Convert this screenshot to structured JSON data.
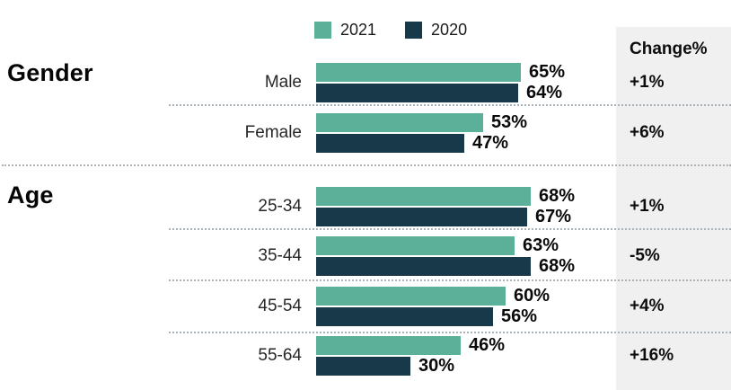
{
  "chart_data": {
    "type": "bar",
    "orientation": "horizontal",
    "value_unit": "%",
    "xlim": [
      0,
      100
    ],
    "grid": false,
    "legend": {
      "position": "top",
      "entries": [
        {
          "label": "2021",
          "color": "#5bb09a"
        },
        {
          "label": "2020",
          "color": "#17394a"
        }
      ]
    },
    "change_column": {
      "header": "Change%"
    },
    "sections": [
      {
        "title": "Gender",
        "rows": [
          {
            "label": "Male",
            "values": [
              65,
              64
            ],
            "display": [
              "65%",
              "64%"
            ],
            "change": "+1%"
          },
          {
            "label": "Female",
            "values": [
              53,
              47
            ],
            "display": [
              "53%",
              "47%"
            ],
            "change": "+6%"
          }
        ]
      },
      {
        "title": "Age",
        "rows": [
          {
            "label": "25-34",
            "values": [
              68,
              67
            ],
            "display": [
              "68%",
              "67%"
            ],
            "change": "+1%"
          },
          {
            "label": "35-44",
            "values": [
              63,
              68
            ],
            "display": [
              "63%",
              "68%"
            ],
            "change": "-5%"
          },
          {
            "label": "45-54",
            "values": [
              60,
              56
            ],
            "display": [
              "60%",
              "56%"
            ],
            "change": "+4%"
          },
          {
            "label": "55-64",
            "values": [
              46,
              30
            ],
            "display": [
              "46%",
              "30%"
            ],
            "change": "+16%"
          }
        ]
      }
    ]
  }
}
